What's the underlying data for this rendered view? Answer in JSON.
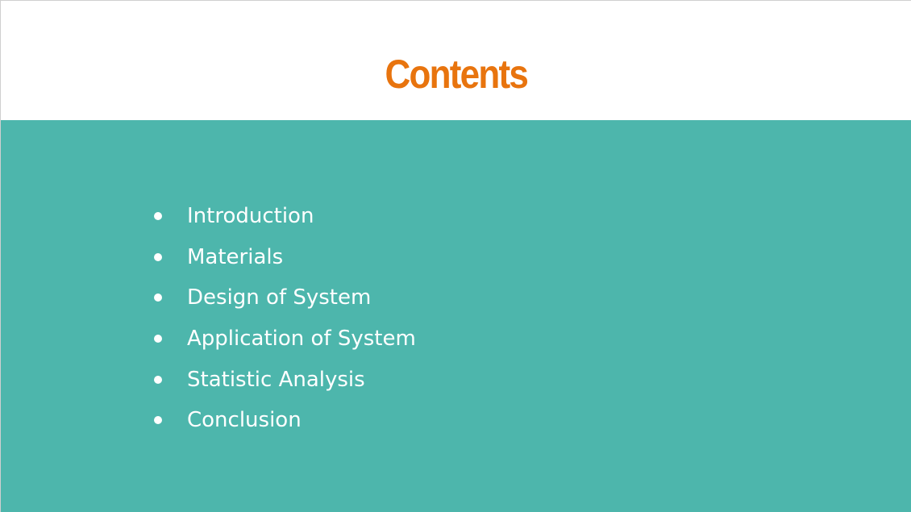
{
  "slide": {
    "title": "Contents",
    "colors": {
      "title": "#E8740E",
      "content_background": "#4DB6AC",
      "bullet_text": "#FFFFFF"
    },
    "items": [
      {
        "label": "Introduction"
      },
      {
        "label": "Materials"
      },
      {
        "label": "Design of System"
      },
      {
        "label": "Application of System"
      },
      {
        "label": "Statistic Analysis"
      },
      {
        "label": "Conclusion"
      }
    ]
  }
}
